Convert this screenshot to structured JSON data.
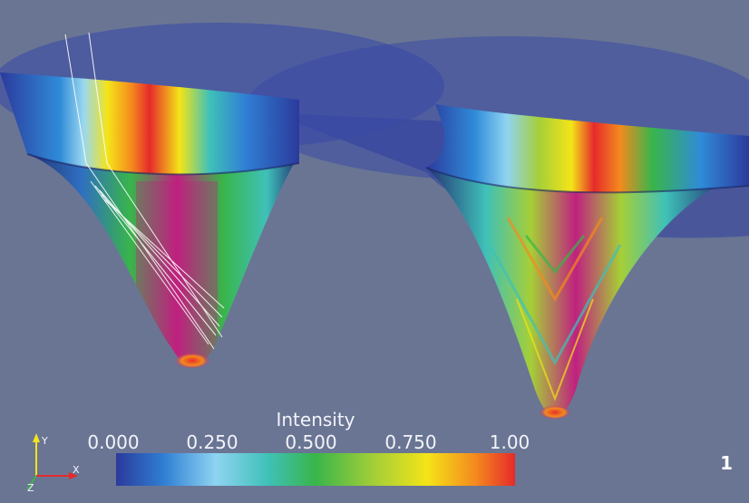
{
  "colorbar": {
    "title": "Intensity",
    "ticks": [
      "0.000",
      "0.250",
      "0.500",
      "0.750",
      "1.00"
    ]
  },
  "axes": {
    "y": "Y",
    "x": "X",
    "z": "Z"
  },
  "panel_label": "1",
  "colors": {
    "background": "#6a7594",
    "surface_dark": "#2c3f9a",
    "peak": "#e8302a",
    "mid": "#2fb84c",
    "core": "#c0217f"
  }
}
